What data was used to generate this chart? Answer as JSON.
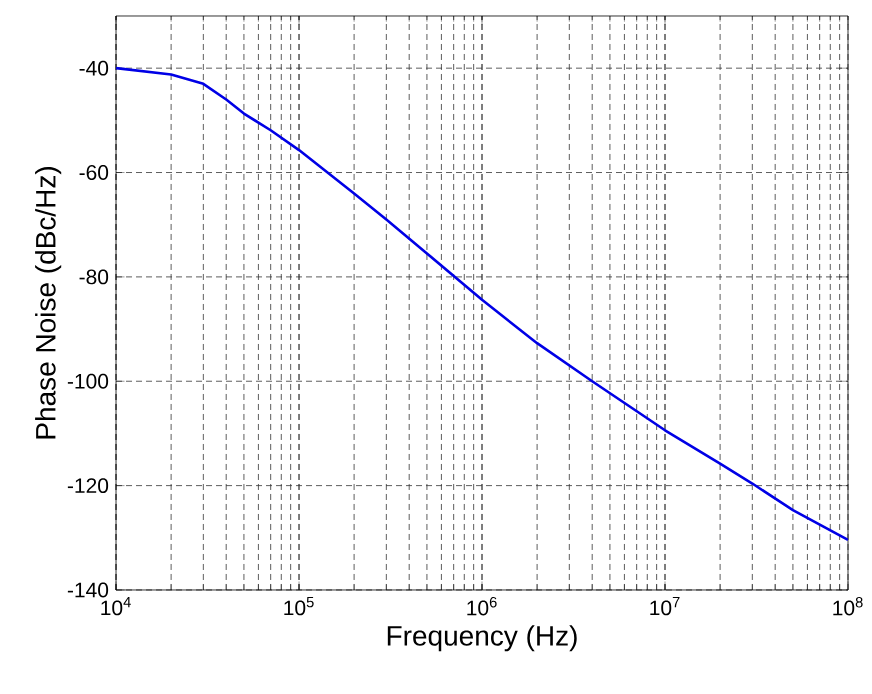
{
  "chart_data": {
    "type": "line",
    "xlabel": "Frequency (Hz)",
    "ylabel": "Phase Noise (dBc/Hz)",
    "log": "x",
    "grid": true,
    "xlim": [
      10000,
      100000000
    ],
    "ylim": [
      -140,
      -30
    ],
    "xticks": [
      {
        "value": 10000,
        "label": "10$^{4}$"
      },
      {
        "value": 100000,
        "label": "10$^{5}$"
      },
      {
        "value": 1000000,
        "label": "10$^{6}$"
      },
      {
        "value": 10000000,
        "label": "10$^{7}$"
      },
      {
        "value": 100000000,
        "label": "10$^{8}$"
      }
    ],
    "yticks": [
      -140,
      -120,
      -100,
      -80,
      -60,
      -40
    ],
    "series": [
      {
        "color": "#0000e6",
        "x": [
          10000,
          20000,
          30000,
          40000,
          50000,
          70000,
          100000,
          200000,
          300000,
          500000,
          1000000,
          2000000,
          4000000,
          10000000,
          20000000,
          30000000,
          50000000,
          100000000
        ],
        "values": [
          -40,
          -41.2,
          -43,
          -46,
          -48.7,
          -51.9,
          -55.7,
          -64,
          -69,
          -75.5,
          -84.4,
          -92.7,
          -100,
          -109.4,
          -115.8,
          -119.6,
          -124.7,
          -130.4
        ]
      }
    ]
  }
}
